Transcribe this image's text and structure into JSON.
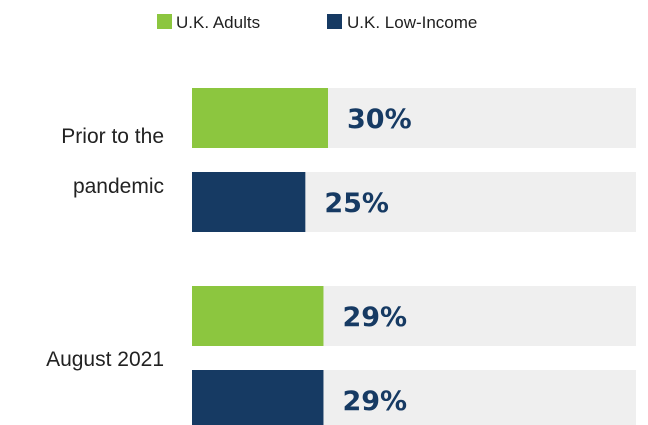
{
  "chart_data": {
    "type": "bar",
    "orientation": "horizontal",
    "categories": [
      [
        "Prior to the",
        "pandemic"
      ],
      [
        "August 2021"
      ]
    ],
    "series": [
      {
        "name": "U.K. Adults",
        "color": "#8cc63f",
        "values": [
          30,
          29
        ],
        "labels": [
          "30%",
          "29%"
        ]
      },
      {
        "name": "U.K. Low-Income",
        "color": "#163a63",
        "values": [
          25,
          29
        ],
        "labels": [
          "25%",
          "29%"
        ]
      }
    ],
    "xlim": [
      0,
      100
    ],
    "background_track_color": "#efefef",
    "label_color": "#163a63",
    "legend_position": "top-center",
    "grid": false
  }
}
